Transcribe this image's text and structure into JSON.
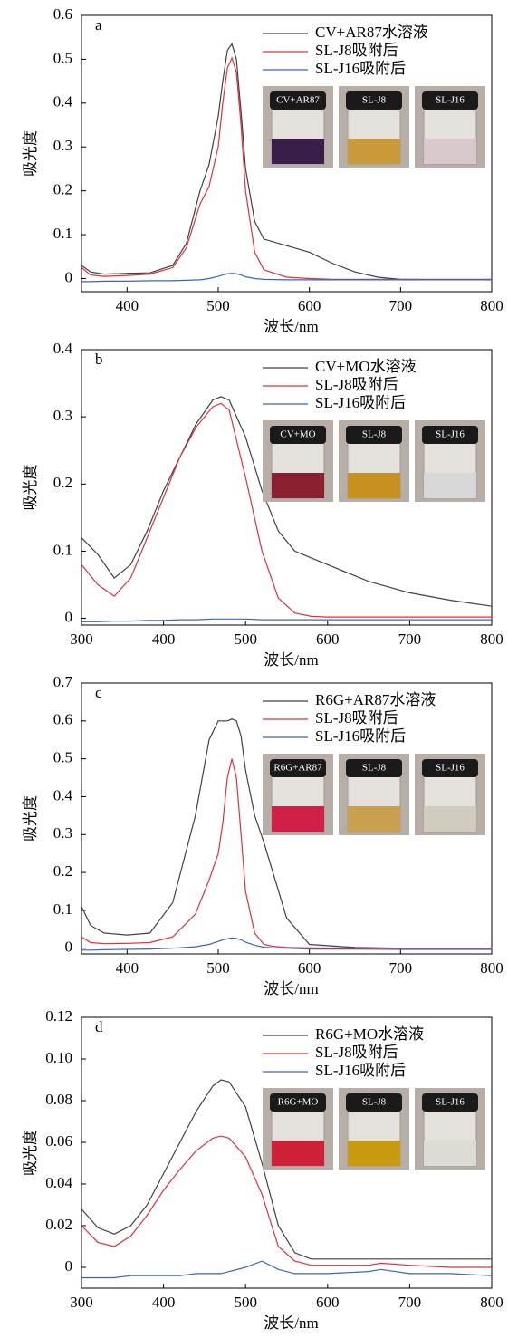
{
  "chart_data": [
    {
      "type": "line",
      "panel_label": "a",
      "x_label": "波长/nm",
      "y_label": "吸光度",
      "x": [
        350,
        360,
        375,
        400,
        425,
        450,
        465,
        480,
        490,
        500,
        505,
        510,
        515,
        520,
        525,
        530,
        540,
        550,
        575,
        600,
        625,
        650,
        675,
        700,
        750,
        800
      ],
      "series": [
        {
          "name": "CV+AR87水溶液",
          "color": "#404040",
          "values": [
            0.03,
            0.015,
            0.01,
            0.012,
            0.013,
            0.03,
            0.08,
            0.2,
            0.26,
            0.37,
            0.45,
            0.52,
            0.535,
            0.5,
            0.38,
            0.25,
            0.13,
            0.09,
            0.075,
            0.06,
            0.035,
            0.015,
            0.003,
            -0.002,
            -0.003,
            -0.003
          ]
        },
        {
          "name": "SL-J8吸附后",
          "color": "#e0303a",
          "values": [
            0.025,
            0.008,
            0.005,
            0.007,
            0.01,
            0.025,
            0.07,
            0.17,
            0.21,
            0.3,
            0.4,
            0.48,
            0.503,
            0.47,
            0.35,
            0.2,
            0.06,
            0.02,
            0.003,
            0,
            -0.002,
            -0.002,
            -0.002,
            -0.002,
            -0.002,
            -0.002
          ]
        },
        {
          "name": "SL-J16吸附后",
          "color": "#3a64c0",
          "values": [
            -0.007,
            -0.007,
            -0.006,
            -0.006,
            -0.005,
            -0.005,
            -0.004,
            -0.003,
            0,
            0.005,
            0.008,
            0.011,
            0.012,
            0.011,
            0.008,
            0.004,
            0,
            -0.002,
            -0.003,
            -0.003,
            -0.003,
            -0.003,
            -0.003,
            -0.003,
            -0.003,
            -0.003
          ]
        }
      ],
      "xlim": [
        350,
        800
      ],
      "xticks": [
        400,
        500,
        600,
        700,
        800
      ],
      "ylim": [
        -0.03,
        0.6
      ],
      "yticks": [
        0,
        0.1,
        0.2,
        0.3,
        0.4,
        0.5,
        0.6
      ],
      "photo_labels": [
        "CV+AR87",
        "SL-J8",
        "SL-J16"
      ],
      "photo_colors": [
        "#3a1e4a",
        "#c89a3a",
        "#d8c8cc"
      ]
    },
    {
      "type": "line",
      "panel_label": "b",
      "x_label": "波长/nm",
      "y_label": "吸光度",
      "x": [
        300,
        320,
        340,
        360,
        380,
        400,
        420,
        440,
        460,
        470,
        480,
        500,
        520,
        540,
        560,
        580,
        600,
        650,
        700,
        750,
        800
      ],
      "series": [
        {
          "name": "CV+MO水溶液",
          "color": "#404040",
          "values": [
            0.12,
            0.095,
            0.06,
            0.08,
            0.13,
            0.19,
            0.24,
            0.29,
            0.325,
            0.33,
            0.325,
            0.27,
            0.19,
            0.13,
            0.1,
            0.09,
            0.08,
            0.055,
            0.038,
            0.027,
            0.018
          ]
        },
        {
          "name": "SL-J8吸附后",
          "color": "#e0303a",
          "values": [
            0.08,
            0.05,
            0.033,
            0.06,
            0.12,
            0.18,
            0.24,
            0.285,
            0.315,
            0.32,
            0.31,
            0.21,
            0.1,
            0.03,
            0.008,
            0.003,
            0.002,
            0.002,
            0.002,
            0.002,
            0.002
          ]
        },
        {
          "name": "SL-J16吸附后",
          "color": "#3a64c0",
          "values": [
            -0.005,
            -0.005,
            -0.004,
            -0.004,
            -0.003,
            -0.003,
            -0.002,
            -0.002,
            -0.001,
            -0.001,
            -0.001,
            -0.001,
            -0.002,
            -0.002,
            -0.002,
            -0.002,
            -0.002,
            -0.002,
            -0.002,
            -0.002,
            -0.002
          ]
        }
      ],
      "xlim": [
        300,
        800
      ],
      "xticks": [
        300,
        400,
        500,
        600,
        700,
        800
      ],
      "ylim": [
        -0.01,
        0.4
      ],
      "yticks": [
        0,
        0.1,
        0.2,
        0.3,
        0.4
      ],
      "photo_labels": [
        "CV+MO",
        "SL-J8",
        "SL-J16"
      ],
      "photo_colors": [
        "#8a2030",
        "#c8901e",
        "#d8d8d8"
      ]
    },
    {
      "type": "line",
      "panel_label": "c",
      "x_label": "波长/nm",
      "y_label": "吸光度",
      "x": [
        350,
        360,
        375,
        400,
        425,
        450,
        475,
        490,
        500,
        505,
        510,
        515,
        520,
        525,
        530,
        540,
        550,
        560,
        575,
        600,
        650,
        700,
        750,
        800
      ],
      "series": [
        {
          "name": "R6G+AR87水溶液",
          "color": "#404040",
          "values": [
            0.11,
            0.06,
            0.04,
            0.035,
            0.04,
            0.12,
            0.35,
            0.55,
            0.6,
            0.6,
            0.6,
            0.605,
            0.6,
            0.56,
            0.47,
            0.35,
            0.28,
            0.2,
            0.08,
            0.01,
            0.002,
            0,
            0,
            0
          ]
        },
        {
          "name": "SL-J8吸附后",
          "color": "#e0303a",
          "values": [
            0.03,
            0.015,
            0.012,
            0.013,
            0.015,
            0.03,
            0.09,
            0.18,
            0.25,
            0.33,
            0.45,
            0.5,
            0.45,
            0.3,
            0.15,
            0.04,
            0.01,
            0.005,
            0.002,
            0.001,
            0,
            0,
            0,
            0
          ]
        },
        {
          "name": "SL-J16吸附后",
          "color": "#3a64c0",
          "values": [
            -0.005,
            -0.005,
            -0.004,
            -0.003,
            -0.002,
            0,
            0.004,
            0.01,
            0.018,
            0.022,
            0.025,
            0.027,
            0.026,
            0.022,
            0.016,
            0.008,
            0.003,
            0.001,
            0,
            -0.002,
            -0.002,
            -0.003,
            -0.003,
            -0.003
          ]
        }
      ],
      "xlim": [
        350,
        800
      ],
      "xticks": [
        400,
        500,
        600,
        700,
        800
      ],
      "ylim": [
        -0.015,
        0.7
      ],
      "yticks": [
        0,
        0.1,
        0.2,
        0.3,
        0.4,
        0.5,
        0.6,
        0.7
      ],
      "photo_labels": [
        "R6G+AR87",
        "SL-J8",
        "SL-J16"
      ],
      "photo_colors": [
        "#d0204a",
        "#c8a050",
        "#d0ccc0"
      ]
    },
    {
      "type": "line",
      "panel_label": "d",
      "x_label": "波长/nm",
      "y_label": "吸光度",
      "x": [
        300,
        320,
        340,
        360,
        380,
        400,
        420,
        440,
        460,
        470,
        480,
        500,
        520,
        540,
        560,
        580,
        600,
        650,
        665,
        700,
        750,
        800
      ],
      "series": [
        {
          "name": "R6G+MO水溶液",
          "color": "#404040",
          "values": [
            0.028,
            0.019,
            0.016,
            0.02,
            0.03,
            0.045,
            0.06,
            0.075,
            0.087,
            0.09,
            0.089,
            0.077,
            0.05,
            0.02,
            0.007,
            0.004,
            0.004,
            0.004,
            0.004,
            0.004,
            0.004,
            0.004
          ]
        },
        {
          "name": "SL-J8吸附后",
          "color": "#e0303a",
          "values": [
            0.02,
            0.012,
            0.01,
            0.015,
            0.025,
            0.037,
            0.047,
            0.056,
            0.062,
            0.063,
            0.062,
            0.053,
            0.035,
            0.01,
            0.003,
            0.001,
            0.001,
            0.001,
            0.002,
            0.001,
            0,
            0
          ]
        },
        {
          "name": "SL-J16吸附后",
          "color": "#3a64c0",
          "values": [
            -0.005,
            -0.005,
            -0.005,
            -0.004,
            -0.004,
            -0.004,
            -0.004,
            -0.003,
            -0.003,
            -0.003,
            -0.002,
            0,
            0.003,
            -0.001,
            -0.003,
            -0.003,
            -0.003,
            -0.002,
            -0.001,
            -0.003,
            -0.003,
            -0.004
          ]
        }
      ],
      "xlim": [
        300,
        800
      ],
      "xticks": [
        300,
        400,
        500,
        600,
        700,
        800
      ],
      "ylim": [
        -0.01,
        0.12
      ],
      "yticks": [
        0,
        0.02,
        0.04,
        0.06,
        0.08,
        {
          "value": 0.1,
          "label": "0.10"
        },
        0.12
      ],
      "photo_labels": [
        "R6G+MO",
        "SL-J8",
        "SL-J16"
      ],
      "photo_colors": [
        "#d02038",
        "#c89a10",
        "#dcdcd4"
      ]
    }
  ]
}
